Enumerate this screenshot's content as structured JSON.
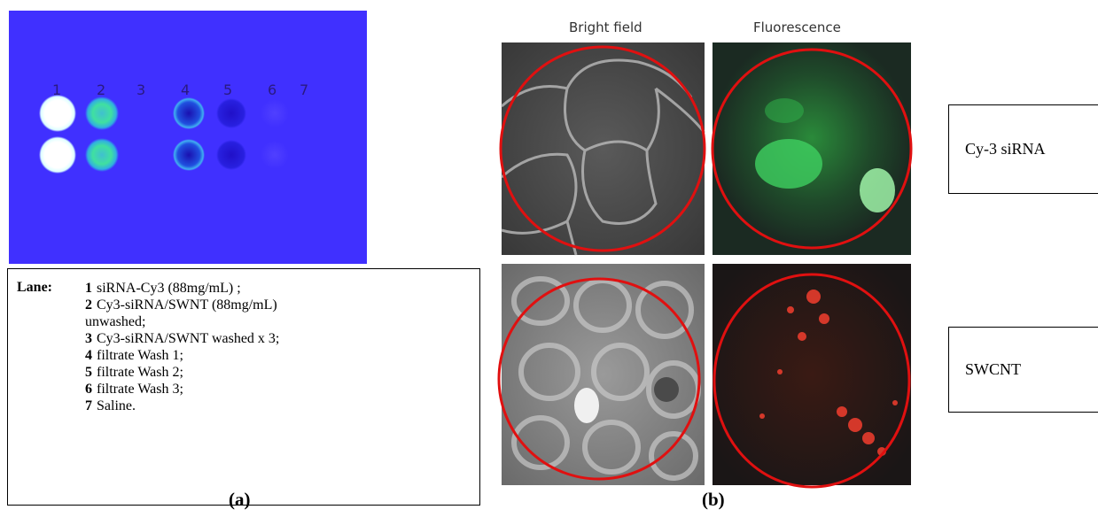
{
  "panel_a": {
    "lane_numbers": [
      "1",
      "2",
      "3",
      "4",
      "5",
      "6",
      "7"
    ],
    "legend": {
      "heading": "Lane:",
      "items": [
        {
          "number": "1",
          "text": "siRNA-Cy3 (88mg/mL) ;"
        },
        {
          "number": "2",
          "text": "Cy3-siRNA/SWNT (88mg/mL) unwashed;"
        },
        {
          "number": "3",
          "text": "Cy3-siRNA/SWNT washed x 3;"
        },
        {
          "number": "4",
          "text": "filtrate Wash  1;"
        },
        {
          "number": "5",
          "text": "filtrate Wash  2;"
        },
        {
          "number": "6",
          "text": "filtrate Wash  3;"
        },
        {
          "number": "7",
          "text": "Saline."
        }
      ]
    },
    "caption": "(a)"
  },
  "panel_b": {
    "column_titles": [
      "Bright field",
      "Fluorescence"
    ],
    "row_labels": [
      "Cy-3 siRNA",
      "SWCNT"
    ],
    "caption": "(b)"
  }
}
